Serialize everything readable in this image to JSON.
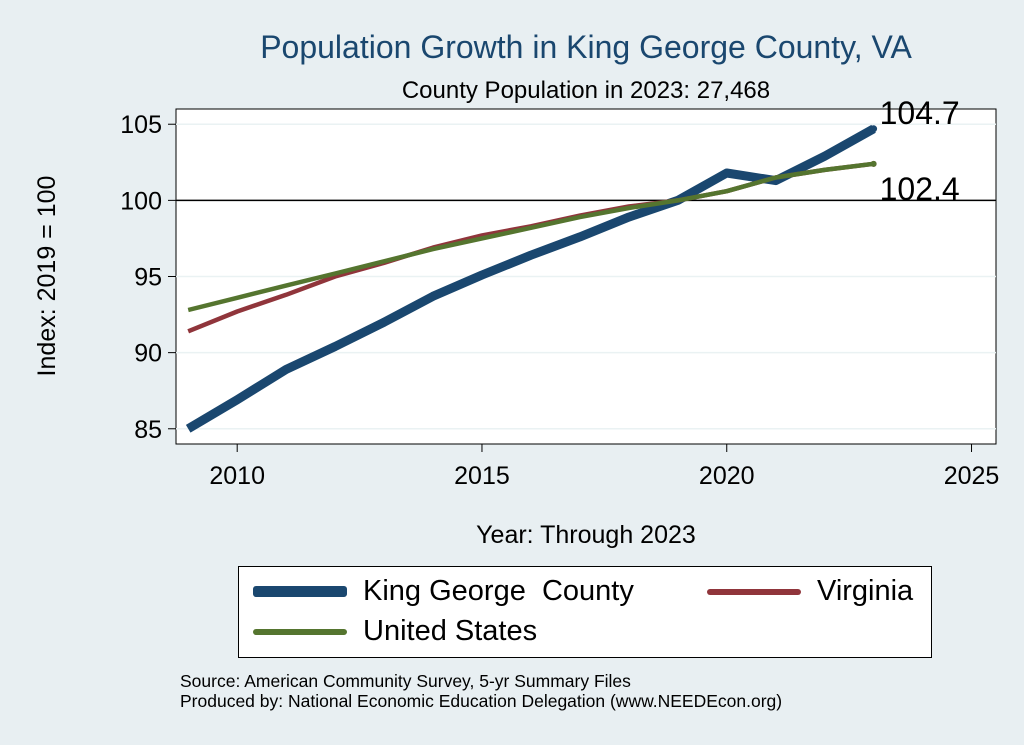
{
  "chart_data": {
    "type": "line",
    "title": "Population Growth in King George County, VA",
    "subtitle": "County Population in 2023: 27,468",
    "xlabel": "Year: Through 2023",
    "ylabel": "Index: 2019 = 100",
    "xlim": [
      2008.75,
      2025.5
    ],
    "ylim": [
      84,
      106
    ],
    "x_ticks": [
      2010,
      2015,
      2020,
      2025
    ],
    "y_ticks": [
      85,
      90,
      95,
      100,
      105
    ],
    "x_tick_labels": [
      "2010",
      "2015",
      "2020",
      "2025"
    ],
    "y_tick_labels": [
      "85",
      "90",
      "95",
      "100",
      "105"
    ],
    "reference_line": 100,
    "grid": true,
    "x": [
      2009,
      2010,
      2011,
      2012,
      2013,
      2014,
      2015,
      2016,
      2017,
      2018,
      2019,
      2020,
      2021,
      2022,
      2023
    ],
    "series": [
      {
        "name": "King George  County",
        "color": "#1a476f",
        "values": [
          85.0,
          86.9,
          88.9,
          90.4,
          92.0,
          93.7,
          95.1,
          96.4,
          97.6,
          98.9,
          100.0,
          101.8,
          101.3,
          102.9,
          104.7
        ]
      },
      {
        "name": "Virginia",
        "color": "#90353b",
        "values": [
          91.4,
          92.7,
          93.8,
          95.0,
          95.9,
          96.9,
          97.7,
          98.3,
          99.0,
          99.6,
          100.0,
          100.6,
          101.5,
          102.0,
          102.4
        ]
      },
      {
        "name": "United States",
        "color": "#55752f",
        "values": [
          92.8,
          93.6,
          94.4,
          95.2,
          96.0,
          96.8,
          97.5,
          98.2,
          98.9,
          99.5,
          100.0,
          100.6,
          101.5,
          102.0,
          102.4
        ]
      }
    ],
    "end_labels": [
      "104.7",
      "102.4"
    ],
    "legend": {
      "placement": "bottom",
      "entries": [
        "King George  County",
        "Virginia",
        "United States"
      ]
    }
  },
  "source_note": {
    "line1": "Source: American Community Survey, 5-yr Summary Files",
    "line2": "Produced by: National Economic Education Delegation (www.NEEDEcon.org)"
  }
}
